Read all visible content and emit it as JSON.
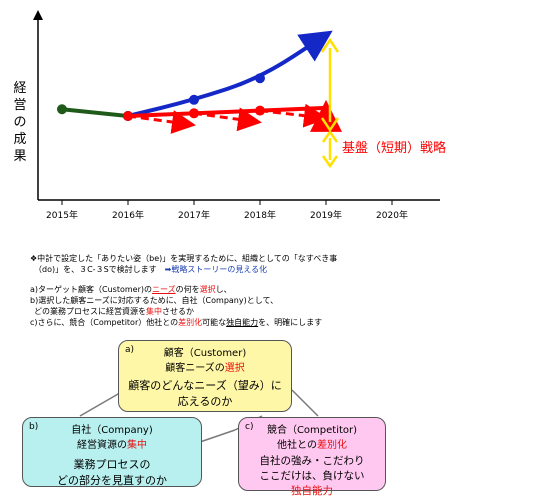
{
  "chart_data": {
    "type": "line",
    "ylabel": "経営の成果",
    "x_ticks": [
      "2015年",
      "2016年",
      "2017年",
      "2018年",
      "2019年",
      "2020年"
    ],
    "annotation": "基盤（短期）戦略",
    "series": [
      {
        "color": "#1f5a1a",
        "style": "solid",
        "x": [
          2015,
          2016
        ],
        "y": [
          45,
          40
        ]
      },
      {
        "color": "#1428c8",
        "style": "solid",
        "x": [
          2016,
          2017,
          2018,
          2019
        ],
        "y": [
          40,
          52,
          68,
          100
        ]
      },
      {
        "color": "#ff0000",
        "style": "solid",
        "x": [
          2016,
          2017,
          2018,
          2019
        ],
        "y": [
          40,
          42,
          44,
          46
        ]
      },
      {
        "color": "#ff0000",
        "style": "dashed",
        "x": [
          2016,
          2017,
          2017,
          2018,
          2018,
          2019
        ],
        "y": [
          40,
          33,
          42,
          35,
          44,
          38
        ]
      }
    ]
  },
  "intro": {
    "line1_prefix": "❖中計で設定した「ありたい姿（be)」を実現するために、組織としての「なすべき事",
    "line2_prefix": "（do)」を、３C-３Sで検討します　",
    "line2_link": "➡戦略ストーリーの見える化"
  },
  "list": {
    "a_pre": "a)ターゲット顧客（Customer)の",
    "a_red1": "ニーズ",
    "a_mid": "の何を",
    "a_red2": "選択",
    "a_post": "し、",
    "b1": "b)選択した顧客ニーズに対応するために、自社（Company)として、",
    "b2_pre": "どの業務プロセスに経営資源を",
    "b2_red": "集中",
    "b2_post": "させるか",
    "c_pre": "c)さらに、競合（Competitor）他社との",
    "c_red": "差別化",
    "c_mid": "可能な",
    "c_u": "独自能力",
    "c_post": "を、明確にします"
  },
  "boxes": {
    "a": {
      "tag": "a)",
      "title": "顧客（Customer)",
      "sub": "顧客ニーズの",
      "sub_red": "選択",
      "q1": "顧客のどんなニーズ（望み）に",
      "q2": "応えるのか"
    },
    "b": {
      "tag": "b)",
      "title": "自社（Company)",
      "sub": "経営資源の",
      "sub_red": "集中",
      "q1": "業務プロセスの",
      "q2": "どの部分を見直すのか"
    },
    "c": {
      "tag": "c)",
      "title": "競合（Competitor)",
      "sub": "他社との",
      "sub_red": "差別化",
      "q1": "自社の強み・こだわり",
      "q2": "ここだけは、負けない",
      "q3": "独自能力"
    }
  }
}
